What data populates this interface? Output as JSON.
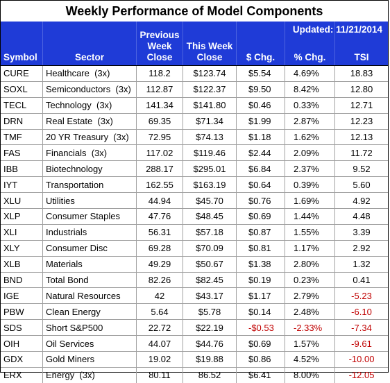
{
  "title": "Weekly Performance of Model Components",
  "updated": "Updated:  11/21/2014",
  "headers": {
    "symbol": "Symbol",
    "sector": "Sector",
    "prev_line1": "Previous",
    "prev_line2": "Week",
    "prev_line3": "Close",
    "this_line1": "This Week",
    "this_line2": "Close",
    "chg": "$ Chg.",
    "pct": "% Chg.",
    "tsi": "TSI"
  },
  "colors": {
    "header_bg": "#1f3bd7",
    "negative": "#c00000"
  },
  "rows": [
    {
      "symbol": "CURE",
      "sector": "Healthcare  (3x)",
      "prev": "118.2",
      "this": "$123.74",
      "chg": "$5.54",
      "pct": "4.69%",
      "tsi": "18.83"
    },
    {
      "symbol": "SOXL",
      "sector": "Semiconductors  (3x)",
      "prev": "112.87",
      "this": "$122.37",
      "chg": "$9.50",
      "pct": "8.42%",
      "tsi": "12.80"
    },
    {
      "symbol": "TECL",
      "sector": "Technology  (3x)",
      "prev": "141.34",
      "this": "$141.80",
      "chg": "$0.46",
      "pct": "0.33%",
      "tsi": "12.71"
    },
    {
      "symbol": "DRN",
      "sector": "Real Estate  (3x)",
      "prev": "69.35",
      "this": "$71.34",
      "chg": "$1.99",
      "pct": "2.87%",
      "tsi": "12.23"
    },
    {
      "symbol": "TMF",
      "sector": "20 YR Treasury  (3x)",
      "prev": "72.95",
      "this": "$74.13",
      "chg": "$1.18",
      "pct": "1.62%",
      "tsi": "12.13"
    },
    {
      "symbol": "FAS",
      "sector": "Financials  (3x)",
      "prev": "117.02",
      "this": "$119.46",
      "chg": "$2.44",
      "pct": "2.09%",
      "tsi": "11.72"
    },
    {
      "symbol": "IBB",
      "sector": "Biotechnology",
      "prev": "288.17",
      "this": "$295.01",
      "chg": "$6.84",
      "pct": "2.37%",
      "tsi": "9.52"
    },
    {
      "symbol": "IYT",
      "sector": "Transportation",
      "prev": "162.55",
      "this": "$163.19",
      "chg": "$0.64",
      "pct": "0.39%",
      "tsi": "5.60"
    },
    {
      "symbol": "XLU",
      "sector": "Utilities",
      "prev": "44.94",
      "this": "$45.70",
      "chg": "$0.76",
      "pct": "1.69%",
      "tsi": "4.92"
    },
    {
      "symbol": "XLP",
      "sector": "Consumer Staples",
      "prev": "47.76",
      "this": "$48.45",
      "chg": "$0.69",
      "pct": "1.44%",
      "tsi": "4.48"
    },
    {
      "symbol": "XLI",
      "sector": "Industrials",
      "prev": "56.31",
      "this": "$57.18",
      "chg": "$0.87",
      "pct": "1.55%",
      "tsi": "3.39"
    },
    {
      "symbol": "XLY",
      "sector": "Consumer Disc",
      "prev": "69.28",
      "this": "$70.09",
      "chg": "$0.81",
      "pct": "1.17%",
      "tsi": "2.92"
    },
    {
      "symbol": "XLB",
      "sector": "Materials",
      "prev": "49.29",
      "this": "$50.67",
      "chg": "$1.38",
      "pct": "2.80%",
      "tsi": "1.32"
    },
    {
      "symbol": "BND",
      "sector": "Total Bond",
      "prev": "82.26",
      "this": "$82.45",
      "chg": "$0.19",
      "pct": "0.23%",
      "tsi": "0.41"
    },
    {
      "symbol": "IGE",
      "sector": "Natural Resources",
      "prev": "42",
      "this": "$43.17",
      "chg": "$1.17",
      "pct": "2.79%",
      "tsi": "-5.23",
      "tsi_neg": true
    },
    {
      "symbol": "PBW",
      "sector": "Clean Energy",
      "prev": "5.64",
      "this": "$5.78",
      "chg": "$0.14",
      "pct": "2.48%",
      "tsi": "-6.10",
      "tsi_neg": true
    },
    {
      "symbol": "SDS",
      "sector": "Short S&P500",
      "prev": "22.72",
      "this": "$22.19",
      "chg": "-$0.53",
      "pct": "-2.33%",
      "tsi": "-7.34",
      "chg_neg": true,
      "pct_neg": true,
      "tsi_neg": true
    },
    {
      "symbol": "OIH",
      "sector": "Oil Services",
      "prev": "44.07",
      "this": "$44.76",
      "chg": "$0.69",
      "pct": "1.57%",
      "tsi": "-9.61",
      "tsi_neg": true
    },
    {
      "symbol": "GDX",
      "sector": "Gold Miners",
      "prev": "19.02",
      "this": "$19.88",
      "chg": "$0.86",
      "pct": "4.52%",
      "tsi": "-10.00",
      "tsi_neg": true
    },
    {
      "symbol": "ERX",
      "sector": "Energy  (3x)",
      "prev": "80.11",
      "this": "86.52",
      "chg": "$6.41",
      "pct": "8.00%",
      "tsi": "-12.05",
      "tsi_neg": true
    }
  ]
}
